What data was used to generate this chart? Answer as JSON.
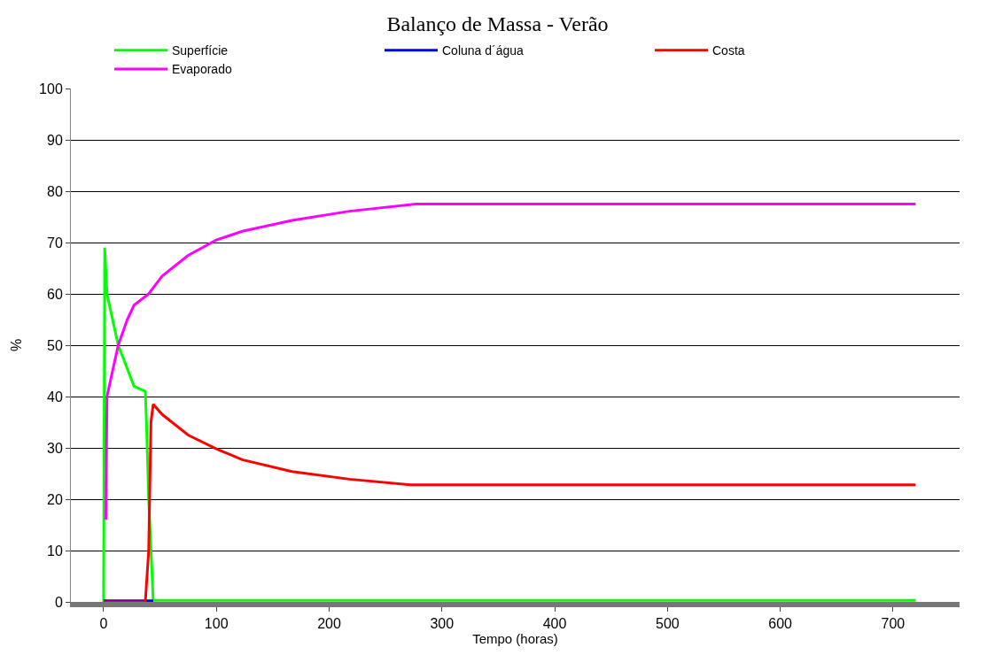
{
  "chart_data": {
    "type": "line",
    "title": "Balanço de Massa - Verão",
    "xlabel": "Tempo (horas)",
    "ylabel": "%",
    "xlim": [
      -29,
      759
    ],
    "xticks": [
      0,
      100,
      200,
      300,
      400,
      500,
      600,
      700
    ],
    "ylim": [
      0,
      100
    ],
    "yticks": [
      0,
      10,
      20,
      30,
      40,
      50,
      60,
      70,
      80,
      90,
      100
    ],
    "grid": "y",
    "legend": "top",
    "marker": "none",
    "line_style": "solid",
    "series": [
      {
        "name": "Superfície",
        "color": "#00ff00",
        "x": [
          0,
          1,
          3,
          13,
          27,
          37,
          38,
          40,
          44,
          100,
          300,
          500,
          720
        ],
        "values": [
          0,
          69,
          60,
          50,
          42,
          41,
          35,
          20,
          0.3,
          0.3,
          0.3,
          0.3,
          0.3
        ]
      },
      {
        "name": "Coluna d´água",
        "color": "#0000ff",
        "x": [
          0,
          10,
          20,
          30,
          44
        ],
        "values": [
          0.2,
          0.2,
          0.2,
          0.2,
          0.2
        ]
      },
      {
        "name": "Costa",
        "color": "#ff0000",
        "x": [
          0,
          20,
          37,
          40,
          42,
          44,
          52,
          75,
          100,
          123,
          167,
          218,
          272,
          400,
          600,
          720
        ],
        "values": [
          0,
          0,
          0,
          10,
          35,
          38.5,
          36.5,
          32.5,
          29.8,
          27.7,
          25.4,
          23.9,
          22.8,
          22.8,
          22.8,
          22.8
        ]
      },
      {
        "name": "Evaporado",
        "color": "#ff00ff",
        "x": [
          2,
          3,
          13,
          21,
          27,
          40,
          52,
          75,
          100,
          123,
          167,
          218,
          277,
          400,
          600,
          720
        ],
        "values": [
          16,
          40,
          50,
          55,
          57.8,
          60,
          63.5,
          67.5,
          70.5,
          72.2,
          74.3,
          76.1,
          77.5,
          77.5,
          77.5,
          77.5
        ]
      }
    ]
  }
}
